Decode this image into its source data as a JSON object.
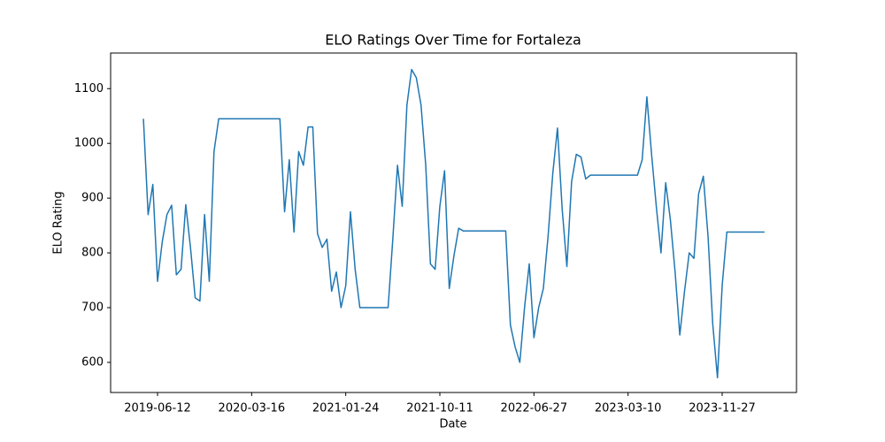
{
  "chart_data": {
    "type": "line",
    "title": "ELO Ratings Over Time for Fortaleza",
    "x_label": "Date",
    "y_label": "ELO Rating",
    "categories": [
      null,
      null,
      null,
      "2019-06-12",
      null,
      null,
      null,
      null,
      null,
      null,
      null,
      null,
      null,
      null,
      null,
      null,
      null,
      null,
      null,
      null,
      null,
      null,
      null,
      "2020-03-16",
      null,
      null,
      null,
      null,
      null,
      null,
      null,
      null,
      null,
      null,
      null,
      null,
      null,
      null,
      null,
      null,
      null,
      null,
      null,
      "2021-01-24",
      null,
      null,
      null,
      null,
      null,
      null,
      null,
      null,
      null,
      null,
      null,
      null,
      null,
      null,
      null,
      null,
      null,
      null,
      null,
      "2021-10-11",
      null,
      null,
      null,
      null,
      null,
      null,
      null,
      null,
      null,
      null,
      null,
      null,
      null,
      null,
      null,
      null,
      null,
      null,
      null,
      "2022-06-27",
      null,
      null,
      null,
      null,
      null,
      null,
      null,
      null,
      null,
      null,
      null,
      null,
      null,
      null,
      null,
      null,
      null,
      null,
      null,
      "2023-03-10",
      null,
      null,
      null,
      null,
      null,
      null,
      null,
      null,
      null,
      null,
      null,
      null,
      null,
      null,
      null,
      null,
      null,
      null,
      null,
      "2023-11-27",
      null,
      null,
      null,
      null,
      null,
      null,
      null,
      null,
      null
    ],
    "values": [
      1045,
      870,
      925,
      748,
      820,
      870,
      887,
      760,
      770,
      888,
      810,
      718,
      712,
      870,
      748,
      985,
      1045,
      1045,
      1045,
      1045,
      1045,
      1045,
      1045,
      1045,
      1045,
      1045,
      1045,
      1045,
      1045,
      1045,
      875,
      970,
      838,
      985,
      960,
      1030,
      1030,
      835,
      810,
      825,
      730,
      765,
      700,
      740,
      875,
      770,
      700,
      700,
      700,
      700,
      700,
      700,
      700,
      825,
      960,
      885,
      1070,
      1135,
      1120,
      1070,
      960,
      780,
      770,
      885,
      950,
      735,
      795,
      845,
      840,
      840,
      840,
      840,
      840,
      840,
      840,
      840,
      840,
      840,
      668,
      628,
      600,
      700,
      780,
      645,
      700,
      735,
      830,
      945,
      1028,
      880,
      775,
      930,
      980,
      975,
      935,
      942,
      942,
      942,
      942,
      942,
      942,
      942,
      942,
      942,
      942,
      942,
      970,
      1085,
      980,
      885,
      800,
      928,
      860,
      765,
      650,
      730,
      800,
      790,
      908,
      940,
      830,
      670,
      572,
      740,
      838,
      838,
      838,
      838,
      838,
      838,
      838,
      838,
      838
    ],
    "color": "#1f77b4",
    "ylim": [
      545,
      1165
    ],
    "yticks": [
      600,
      700,
      800,
      900,
      1000,
      1100
    ],
    "grid": false
  }
}
